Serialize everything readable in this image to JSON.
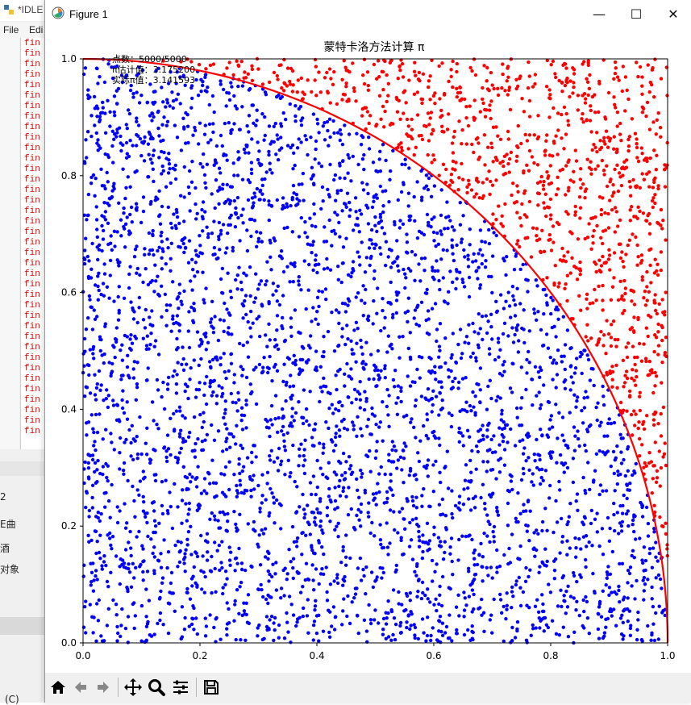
{
  "background_window": {
    "title": "*IDLE",
    "menu": [
      "File",
      "Edi"
    ],
    "find_lines": [
      "fin",
      "fin",
      "fin",
      "fin",
      "fin",
      "fin",
      "fin",
      "fin",
      "fin",
      "fin",
      "fin",
      "fin",
      "fin",
      "fin",
      "fin",
      "fin",
      "fin",
      "fin",
      "fin",
      "fin",
      "fin",
      "fin",
      "fin",
      "fin",
      "fin",
      "fin",
      "fin",
      "fin",
      "fin",
      "fin",
      "fin",
      "fin",
      "fin",
      "fin",
      "fin",
      "fin",
      "fin",
      "fin"
    ],
    "side_items": [
      "2",
      "E曲",
      "酒",
      "对象"
    ],
    "bottom_text": "(C)"
  },
  "figure_window": {
    "title": "Figure 1",
    "controls": {
      "minimize": "—",
      "maximize": "☐",
      "close": "✕"
    },
    "toolbar": [
      "home-icon",
      "back-icon",
      "forward-icon",
      "pan-icon",
      "zoom-icon",
      "configure-icon",
      "save-icon"
    ]
  },
  "chart_data": {
    "type": "scatter",
    "title": "蒙特卡洛方法计算 π",
    "xlabel": "",
    "ylabel": "",
    "xlim": [
      0.0,
      1.0
    ],
    "ylim": [
      0.0,
      1.0
    ],
    "xticks": [
      "0.0",
      "0.2",
      "0.4",
      "0.6",
      "0.8",
      "1.0"
    ],
    "yticks": [
      "0.0",
      "0.2",
      "0.4",
      "0.6",
      "0.8",
      "1.0"
    ],
    "grid": false,
    "total_points": 5000,
    "series": [
      {
        "color": "#0000ff",
        "marker_size": 2.2
      },
      {
        "color": "#ff0000",
        "marker_size": 2.2
      }
    ],
    "curve": {
      "label": "",
      "equation": "x^2 + y^2 = 1",
      "color": "#ff0000"
    },
    "annotations": [
      "点数：5000/5000",
      "π估计值：3.175200",
      "实际π值：3.141593"
    ]
  }
}
